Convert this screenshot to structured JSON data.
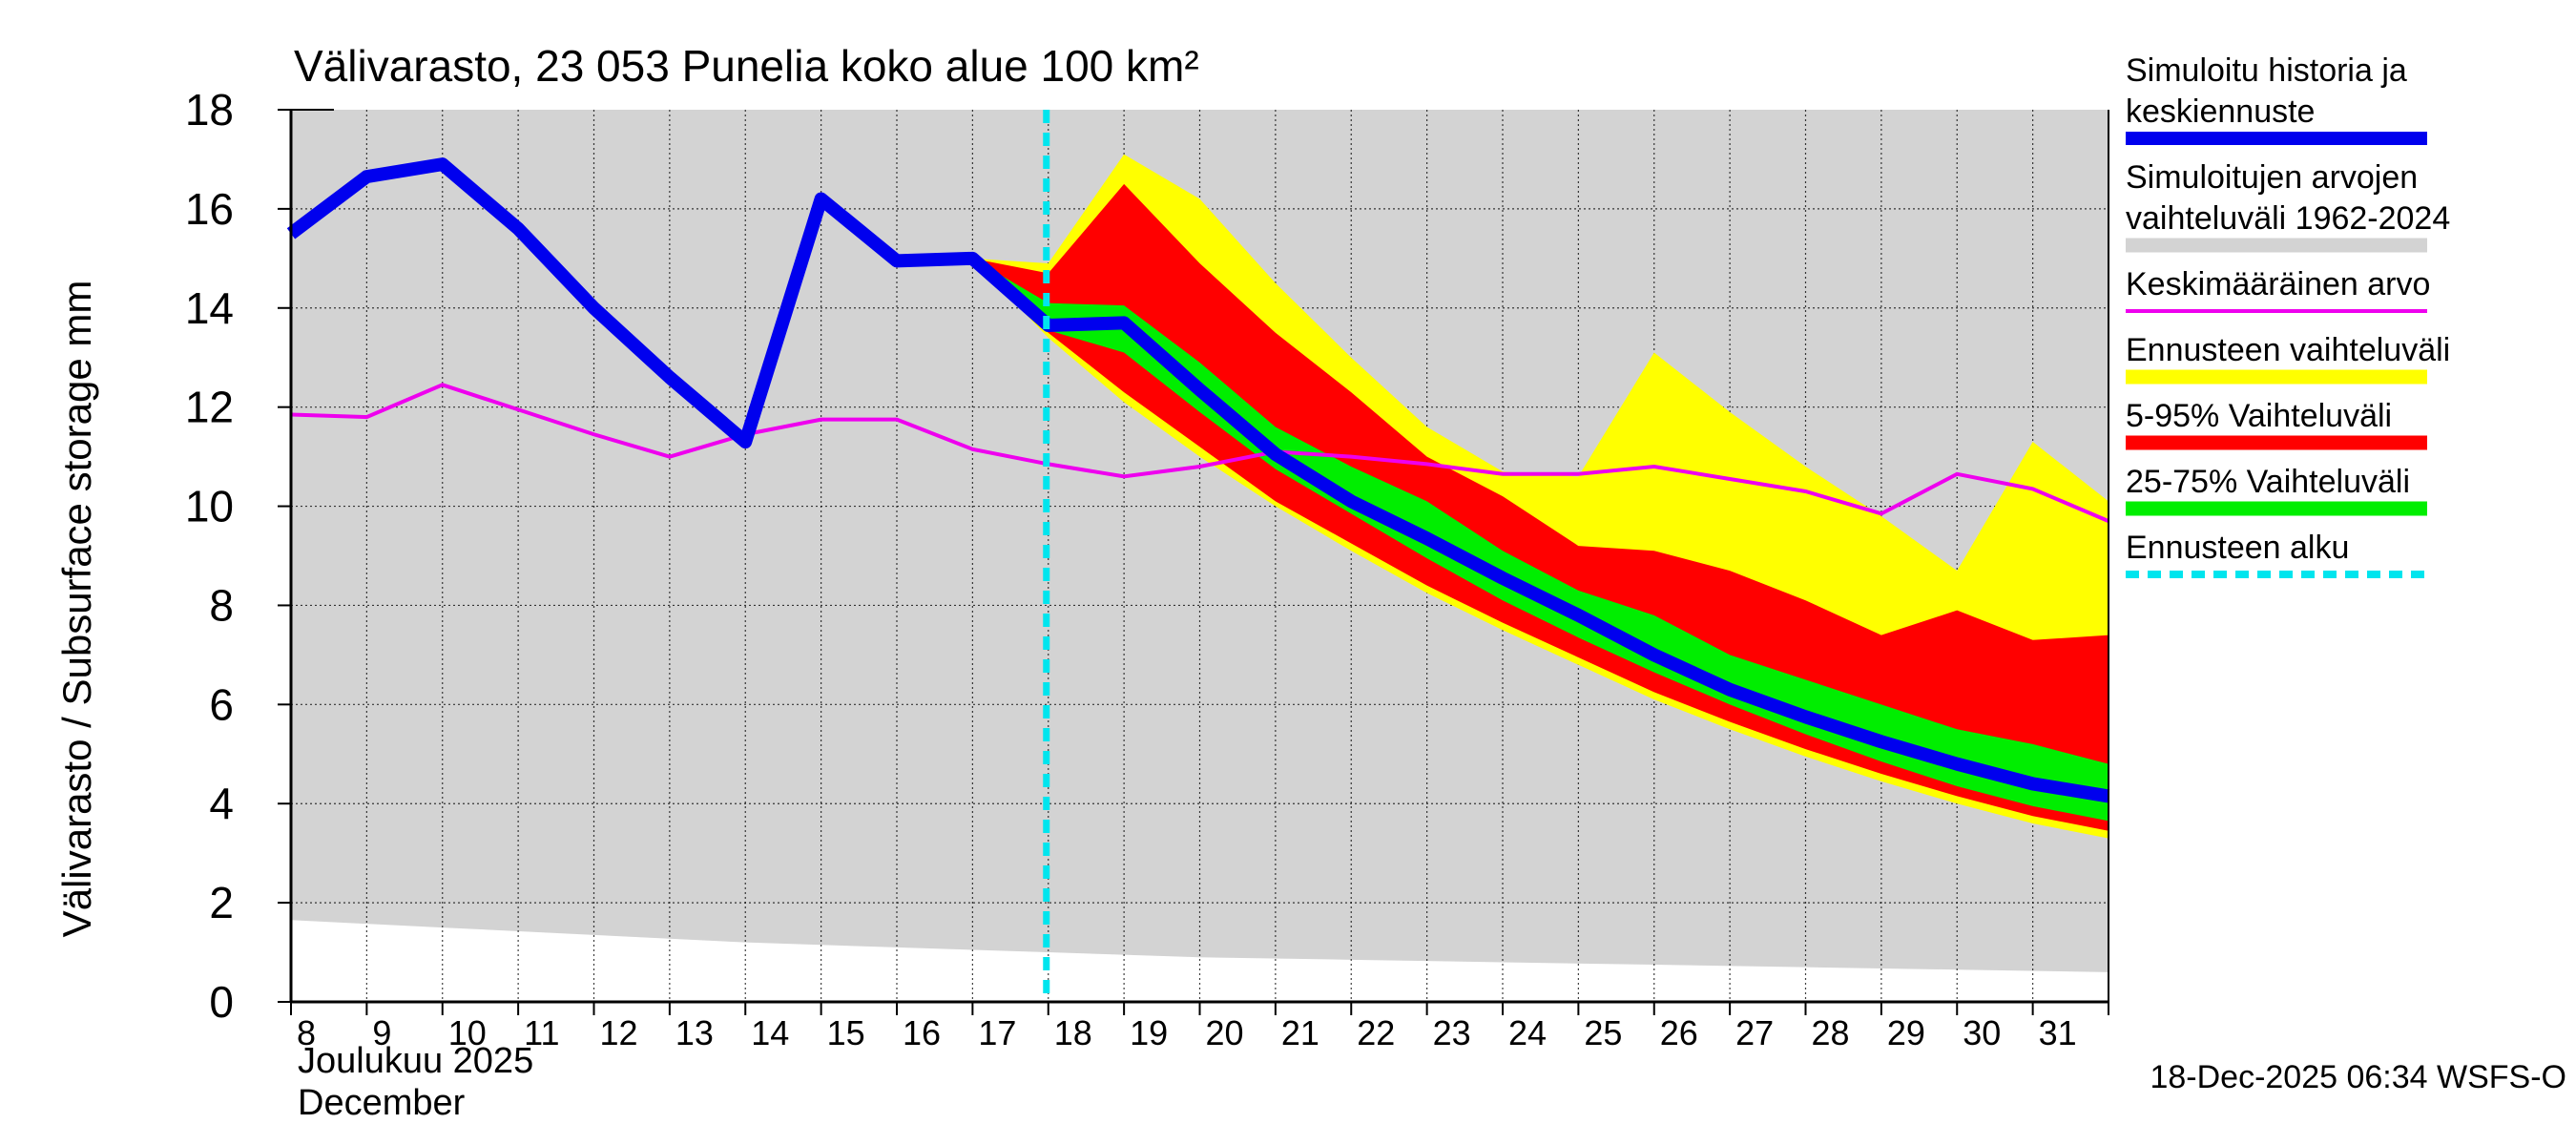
{
  "chart_data": {
    "type": "area",
    "title": "Välivarasto, 23 053 Punelia koko alue 100 km²",
    "ylabel": "Välivarasto / Subsurface storage  mm",
    "xlabel_line1": "Joulukuu  2025",
    "xlabel_line2": "December",
    "timestamp": "18-Dec-2025 06:34 WSFS-O",
    "ylim": [
      0,
      18
    ],
    "yticks": [
      "0",
      "2",
      "4",
      "6",
      "8",
      "10",
      "12",
      "14",
      "16",
      "18"
    ],
    "x_day_range": [
      8,
      32
    ],
    "xticks": [
      "8",
      "9",
      "10",
      "11",
      "12",
      "13",
      "14",
      "15",
      "16",
      "17",
      "18",
      "19",
      "20",
      "21",
      "22",
      "23",
      "24",
      "25",
      "26",
      "27",
      "28",
      "29",
      "30",
      "31"
    ],
    "forecast_start_day": 18,
    "legend": [
      {
        "label_lines": [
          "Simuloitu historia ja",
          "keskiennuste"
        ],
        "color": "#0000ee",
        "style": "thick"
      },
      {
        "label_lines": [
          "Simuloitujen arvojen",
          "vaihteluväli 1962-2024"
        ],
        "color": "#d3d3d3",
        "style": "band"
      },
      {
        "label_lines": [
          "Keskimääräinen arvo"
        ],
        "color": "#ee00ee",
        "style": "thin"
      },
      {
        "label_lines": [
          "Ennusteen vaihteluväli"
        ],
        "color": "#ffff00",
        "style": "band"
      },
      {
        "label_lines": [
          "5-95% Vaihteluväli"
        ],
        "color": "#ff0000",
        "style": "band"
      },
      {
        "label_lines": [
          "25-75% Vaihteluväli"
        ],
        "color": "#00ee00",
        "style": "band"
      },
      {
        "label_lines": [
          "Ennusteen alku"
        ],
        "color": "#00e5ee",
        "style": "dashed"
      }
    ],
    "series": {
      "hist_range": {
        "name": "Simuloitujen arvojen vaihteluväli 1962-2024",
        "color": "#d3d3d3",
        "x": [
          8,
          10,
          12,
          14,
          16,
          18,
          20,
          22,
          24,
          26,
          28,
          30,
          32
        ],
        "low": [
          1.65,
          1.5,
          1.35,
          1.2,
          1.1,
          1.0,
          0.9,
          0.85,
          0.8,
          0.75,
          0.7,
          0.65,
          0.6
        ],
        "high": [
          18,
          18,
          18,
          18,
          18,
          18,
          18,
          18,
          18,
          18,
          18,
          18,
          18
        ]
      },
      "forecast_range": {
        "name": "Ennusteen vaihteluväli",
        "color": "#ffff00",
        "x": [
          17,
          18,
          19,
          20,
          21,
          22,
          23,
          24,
          25,
          26,
          27,
          28,
          29,
          30,
          31,
          32
        ],
        "low": [
          15.0,
          13.4,
          12.1,
          11.0,
          10.0,
          9.1,
          8.25,
          7.5,
          6.8,
          6.1,
          5.5,
          4.95,
          4.45,
          4.0,
          3.6,
          3.3
        ],
        "high": [
          15.0,
          14.9,
          17.1,
          16.2,
          14.5,
          13.0,
          11.6,
          10.7,
          10.6,
          13.1,
          11.9,
          10.8,
          9.8,
          8.7,
          11.3,
          10.1
        ]
      },
      "p5_95": {
        "name": "5-95% Vaihteluväli",
        "color": "#ff0000",
        "x": [
          17,
          18,
          19,
          20,
          21,
          22,
          23,
          24,
          25,
          26,
          27,
          28,
          29,
          30,
          31,
          32
        ],
        "low": [
          15.0,
          13.5,
          12.3,
          11.2,
          10.1,
          9.25,
          8.4,
          7.65,
          6.95,
          6.25,
          5.65,
          5.1,
          4.6,
          4.15,
          3.75,
          3.45
        ],
        "high": [
          15.0,
          14.7,
          16.5,
          14.9,
          13.5,
          12.3,
          11.0,
          10.2,
          9.2,
          9.1,
          8.7,
          8.1,
          7.4,
          7.9,
          7.3,
          7.4
        ]
      },
      "p25_75": {
        "name": "25-75% Vaihteluväli",
        "color": "#00ee00",
        "x": [
          17,
          18,
          19,
          20,
          21,
          22,
          23,
          24,
          25,
          26,
          27,
          28,
          29,
          30,
          31,
          32
        ],
        "low": [
          15.0,
          13.55,
          13.1,
          11.9,
          10.75,
          9.85,
          8.95,
          8.1,
          7.35,
          6.65,
          6.0,
          5.4,
          4.85,
          4.35,
          3.95,
          3.65
        ],
        "high": [
          15.0,
          14.1,
          14.05,
          12.9,
          11.6,
          10.8,
          10.1,
          9.1,
          8.3,
          7.8,
          7.0,
          6.5,
          6.0,
          5.5,
          5.2,
          4.8
        ]
      },
      "mean": {
        "name": "Keskimääräinen arvo",
        "color": "#ee00ee",
        "x": [
          8,
          9,
          10,
          11,
          12,
          13,
          14,
          15,
          16,
          17,
          18,
          19,
          20,
          21,
          22,
          23,
          24,
          25,
          26,
          27,
          28,
          29,
          30,
          31,
          32
        ],
        "y": [
          11.85,
          11.8,
          12.45,
          11.95,
          11.45,
          11.0,
          11.45,
          11.75,
          11.75,
          11.15,
          10.85,
          10.6,
          10.8,
          11.1,
          11.0,
          10.85,
          10.65,
          10.65,
          10.8,
          10.55,
          10.3,
          9.85,
          10.65,
          10.35,
          9.7
        ]
      },
      "sim_median": {
        "name": "Simuloitu historia ja keskiennuste",
        "color": "#0000ee",
        "x": [
          8,
          9,
          10,
          11,
          12,
          13,
          14,
          15,
          16,
          17,
          18,
          19,
          20,
          21,
          22,
          23,
          24,
          25,
          26,
          27,
          28,
          29,
          30,
          31,
          32
        ],
        "y": [
          15.5,
          16.65,
          16.9,
          15.6,
          14.0,
          12.6,
          11.3,
          16.2,
          14.95,
          15.0,
          13.65,
          13.7,
          12.35,
          11.05,
          10.1,
          9.35,
          8.55,
          7.8,
          7.0,
          6.3,
          5.75,
          5.25,
          4.8,
          4.4,
          4.15
        ]
      }
    }
  }
}
